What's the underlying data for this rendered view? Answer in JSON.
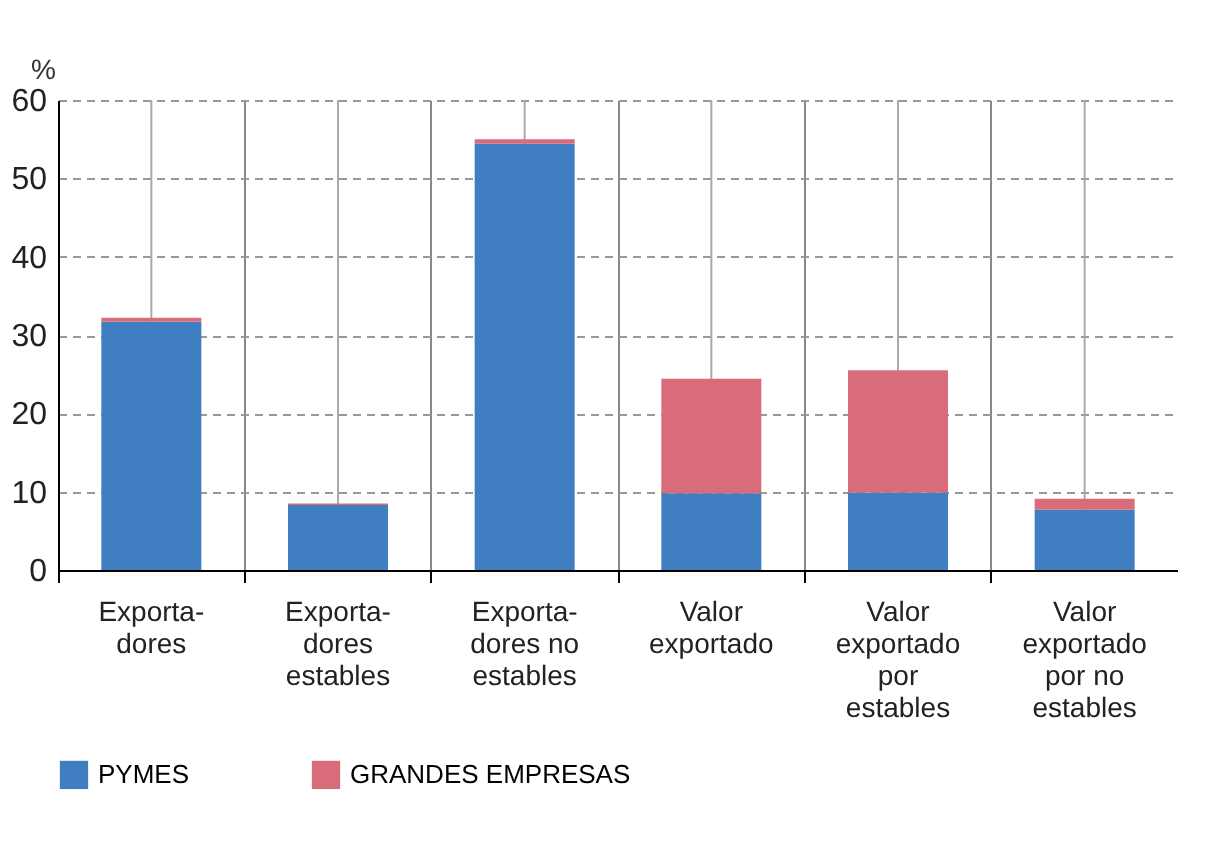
{
  "chart_data": {
    "type": "bar",
    "stacked": true,
    "ylabel": "%",
    "categories": [
      "Exporta-\ndores",
      "Exporta-\ndores\nestables",
      "Exporta-\ndores no\nestables",
      "Valor\nexportado",
      "Valor\nexportado\npor\nestables",
      "Valor\nexportado\npor no\nestables"
    ],
    "series": [
      {
        "name": "PYMES",
        "color": "#3f7fc1",
        "values": [
          31.7,
          8.3,
          54.4,
          9.8,
          9.9,
          7.7
        ]
      },
      {
        "name": "GRANDES EMPRESAS",
        "color": "#d96c7a",
        "values": [
          0.5,
          0.2,
          0.6,
          14.6,
          15.6,
          1.4
        ]
      }
    ],
    "ylim": [
      0,
      60
    ],
    "yticks": [
      0,
      10,
      20,
      30,
      40,
      50,
      60
    ],
    "grid": true,
    "legend": "bottom"
  }
}
